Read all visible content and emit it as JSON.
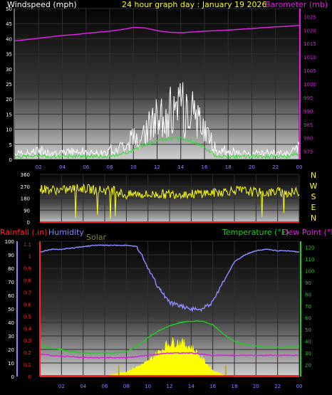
{
  "header": {
    "windspeed_label": "Windspeed (mph)",
    "title": "24 hour graph day : January 19 2026",
    "barometer_label": "Barometer (mb)"
  },
  "bottom_labels": {
    "rainfall": "Rainfall (.in)",
    "humidity": "Humidity",
    "solar": "Solar",
    "temperature": "Temperature (°F)",
    "dewpoint": "Dew Point (°F)"
  },
  "colors": {
    "windspeed": "#ffffff",
    "gust_avg": "#33dd33",
    "barometer": "#dd22dd",
    "direction": "#ffff00",
    "title": "#ffff00",
    "rainfall": "#ff2222",
    "humidity": "#8888ff",
    "solar": "#ffff00",
    "temperature": "#22cc22",
    "dewpoint": "#dd22dd"
  },
  "chart_data": [
    {
      "type": "line",
      "title": "24 hour graph day : January 19 2026",
      "x_ticks": [
        "02",
        "04",
        "06",
        "08",
        "10",
        "12",
        "14",
        "16",
        "18",
        "20",
        "22",
        "00"
      ],
      "y_left": {
        "label": "Windspeed (mph)",
        "ticks": [
          "0",
          "5",
          "10",
          "15",
          "20",
          "25",
          "30",
          "35",
          "40",
          "45",
          "50"
        ],
        "range": [
          0,
          50
        ]
      },
      "y_right": {
        "label": "Barometer (mb)",
        "ticks": [
          "975",
          "980",
          "985",
          "990",
          "995",
          "1000",
          "1005",
          "1010",
          "1015",
          "1020",
          "1025"
        ],
        "range": [
          972,
          1028
        ]
      },
      "x": [
        0,
        1,
        2,
        3,
        4,
        5,
        6,
        7,
        8,
        9,
        10,
        11,
        12,
        13,
        14,
        15,
        16,
        17,
        18,
        19,
        20,
        21,
        22,
        23,
        24
      ],
      "series": [
        {
          "name": "Windspeed (mph)",
          "axis": "left",
          "values": [
            2,
            2,
            3,
            2,
            2,
            3,
            2,
            2,
            3,
            4,
            7,
            10,
            12,
            14,
            16,
            14,
            10,
            3,
            2,
            2,
            2,
            2,
            2,
            2,
            4
          ]
        },
        {
          "name": "Barometer (mb)",
          "axis": "right",
          "values": [
            1016,
            1016.5,
            1017,
            1017.5,
            1018,
            1018.3,
            1018.8,
            1019.2,
            1019.6,
            1020.2,
            1021,
            1020.8,
            1019.8,
            1019.2,
            1019,
            1019.3,
            1019.6,
            1019.8,
            1020,
            1020.3,
            1020.6,
            1020.9,
            1021.2,
            1021.4,
            1021.8
          ]
        },
        {
          "name": "Average wind",
          "axis": "left",
          "values": [
            1,
            1,
            1,
            1,
            1,
            1,
            1,
            1,
            1,
            2,
            3,
            5,
            6,
            7,
            7,
            6,
            4,
            1,
            1,
            1,
            1,
            1,
            1,
            1,
            2
          ]
        }
      ]
    },
    {
      "type": "scatter",
      "y_ticks": [
        "360",
        "270",
        "180",
        "90",
        "0"
      ],
      "y_range": [
        0,
        360
      ],
      "direction_labels": [
        "N",
        "W",
        "S",
        "E",
        "N"
      ],
      "x": [
        0,
        1,
        2,
        3,
        4,
        5,
        6,
        7,
        8,
        9,
        10,
        11,
        12,
        13,
        14,
        15,
        16,
        17,
        18,
        19,
        20,
        21,
        22,
        23,
        24
      ],
      "series": [
        {
          "name": "Wind direction",
          "values": [
            250,
            245,
            240,
            250,
            255,
            245,
            240,
            235,
            200,
            215,
            205,
            210,
            210,
            215,
            210,
            220,
            220,
            230,
            240,
            235,
            225,
            220,
            230,
            220,
            230
          ]
        }
      ]
    },
    {
      "type": "line",
      "x_ticks": [
        "02",
        "04",
        "06",
        "08",
        "10",
        "12",
        "14",
        "16",
        "18",
        "20",
        "22",
        "00"
      ],
      "y_left_outer": {
        "label": "Humidity",
        "ticks": [
          "0",
          "10",
          "20",
          "30",
          "40",
          "50",
          "60",
          "70",
          "80",
          "90",
          "100"
        ],
        "range": [
          0,
          100
        ]
      },
      "y_left_inner": {
        "label": "Rainfall (.in)",
        "ticks": [
          "0",
          "0.1",
          "0.2",
          "0.3",
          "0.4",
          "0.5",
          "0.6",
          "0.7",
          "0.8",
          "0.9",
          "1",
          "1.1"
        ],
        "range": [
          0,
          1.1
        ]
      },
      "y_right": {
        "label": "Temperature (°F)",
        "ticks": [
          "20",
          "30",
          "40",
          "50",
          "60",
          "70",
          "80",
          "90",
          "100",
          "110",
          "120"
        ],
        "range": [
          10,
          125
        ]
      },
      "x": [
        0,
        1,
        2,
        3,
        4,
        5,
        6,
        7,
        8,
        9,
        10,
        11,
        12,
        13,
        14,
        15,
        16,
        17,
        18,
        19,
        20,
        21,
        22,
        23,
        24
      ],
      "series": [
        {
          "name": "Humidity",
          "axis": "left_outer",
          "values": [
            92,
            94,
            94,
            95,
            96,
            97,
            97,
            97,
            97,
            96,
            80,
            65,
            55,
            52,
            50,
            50,
            55,
            70,
            85,
            90,
            93,
            94,
            93,
            93,
            92
          ]
        },
        {
          "name": "Temperature (°F)",
          "axis": "right",
          "values": [
            37,
            34,
            33,
            31,
            30,
            30,
            30,
            30,
            31,
            36,
            43,
            49,
            53,
            56,
            57,
            57,
            54,
            46,
            40,
            37,
            36,
            35,
            35,
            35,
            36
          ]
        },
        {
          "name": "Dew Point (°F)",
          "axis": "right",
          "values": [
            29,
            28,
            27,
            27,
            26,
            26,
            26,
            26,
            26,
            27,
            28,
            29,
            30,
            30,
            30,
            29,
            28,
            28,
            28,
            28,
            28,
            28,
            28,
            28,
            28
          ]
        },
        {
          "name": "Solar",
          "axis": "left_outer",
          "values": [
            0,
            0,
            0,
            0,
            0,
            0,
            0,
            2,
            4,
            8,
            12,
            20,
            28,
            28,
            24,
            15,
            5,
            1,
            0,
            0,
            0,
            0,
            0,
            0,
            0
          ]
        },
        {
          "name": "Rainfall (.in)",
          "axis": "left_inner",
          "values": [
            0,
            0,
            0,
            0,
            0,
            0,
            0,
            0,
            0,
            0,
            0,
            0,
            0,
            0,
            0,
            0,
            0,
            0,
            0,
            0,
            0,
            0,
            0,
            0,
            0
          ]
        }
      ]
    }
  ]
}
